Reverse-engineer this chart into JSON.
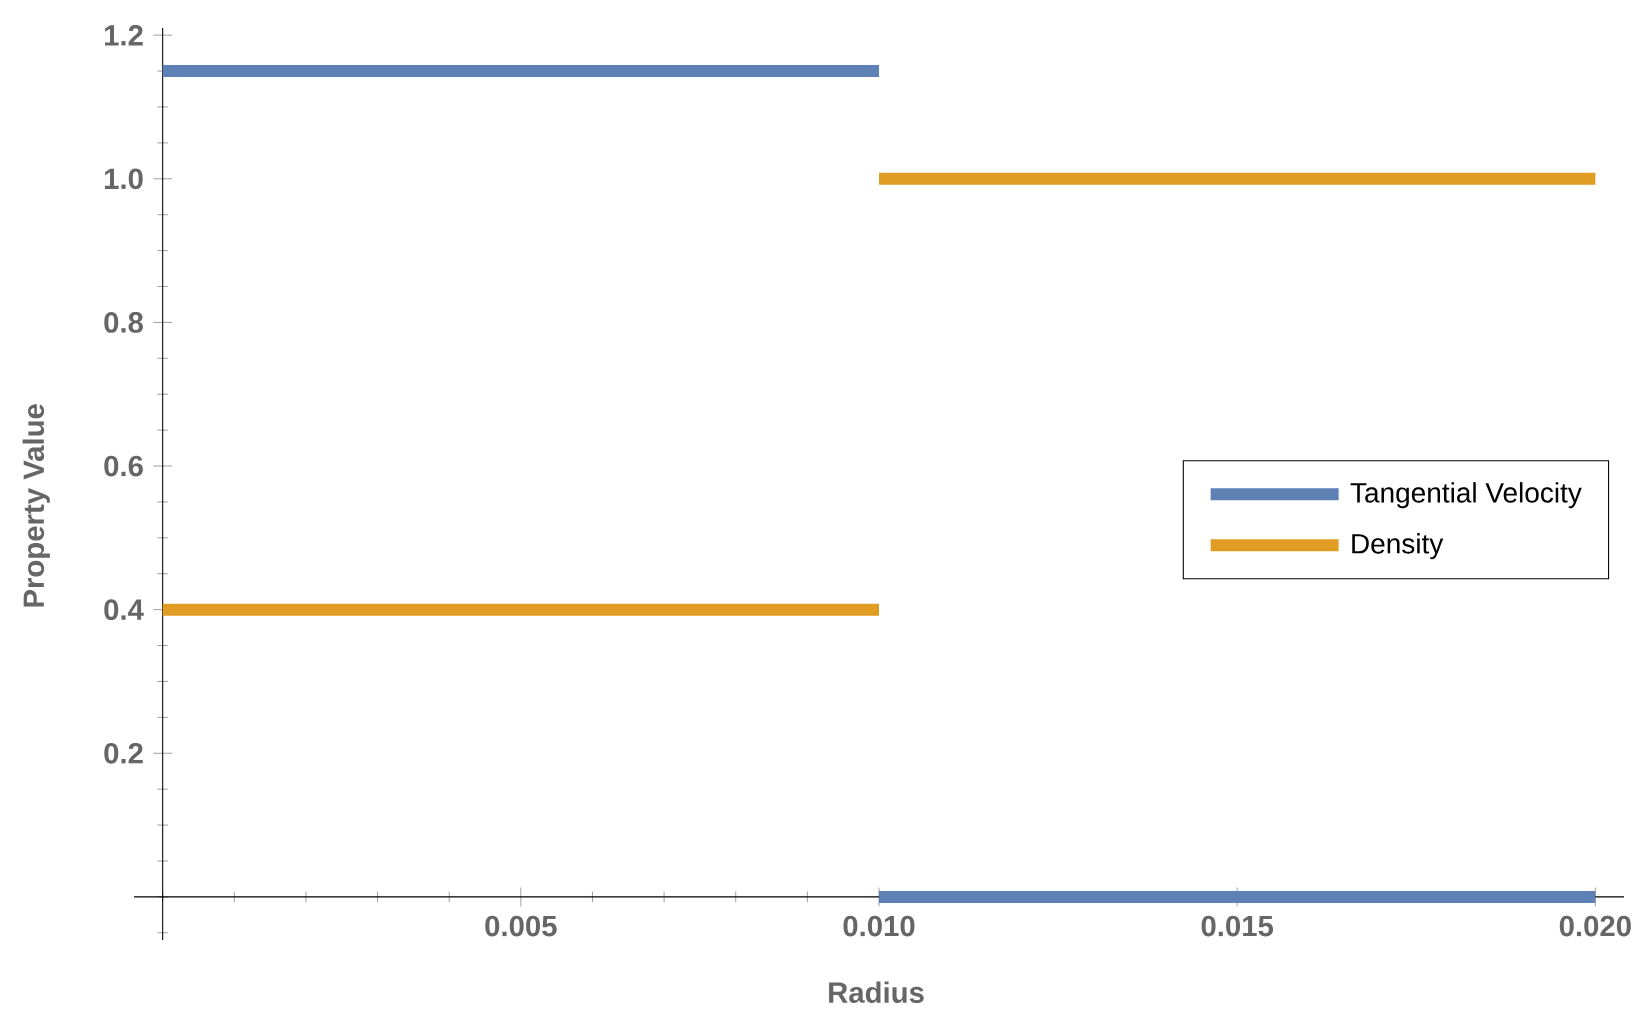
{
  "chart_data": {
    "type": "line",
    "xlabel": "Radius",
    "ylabel": "Property Value",
    "xlim": [
      -0.0004,
      0.0204
    ],
    "ylim": [
      -0.06,
      1.21
    ],
    "xticks": [
      0.005,
      {
        "value": 0.01,
        "label": "0.010"
      },
      0.015,
      {
        "value": 0.02,
        "label": "0.020"
      }
    ],
    "yticks": [
      0.2,
      0.4,
      0.6,
      0.8,
      {
        "value": 1.0,
        "label": "1.0"
      },
      1.2
    ],
    "legend": "right",
    "line_style": "solid",
    "series": [
      {
        "name": "Tangential Velocity",
        "color": "#5e81b5",
        "x": [
          0,
          0.01,
          null,
          0.01,
          0.02
        ],
        "values": [
          1.15,
          1.15,
          null,
          0,
          0
        ]
      },
      {
        "name": "Density",
        "color": "#e19c24",
        "x": [
          0,
          0.01,
          null,
          0.01,
          0.02
        ],
        "values": [
          0.4,
          0.4,
          null,
          1.0,
          1.0
        ]
      }
    ]
  }
}
